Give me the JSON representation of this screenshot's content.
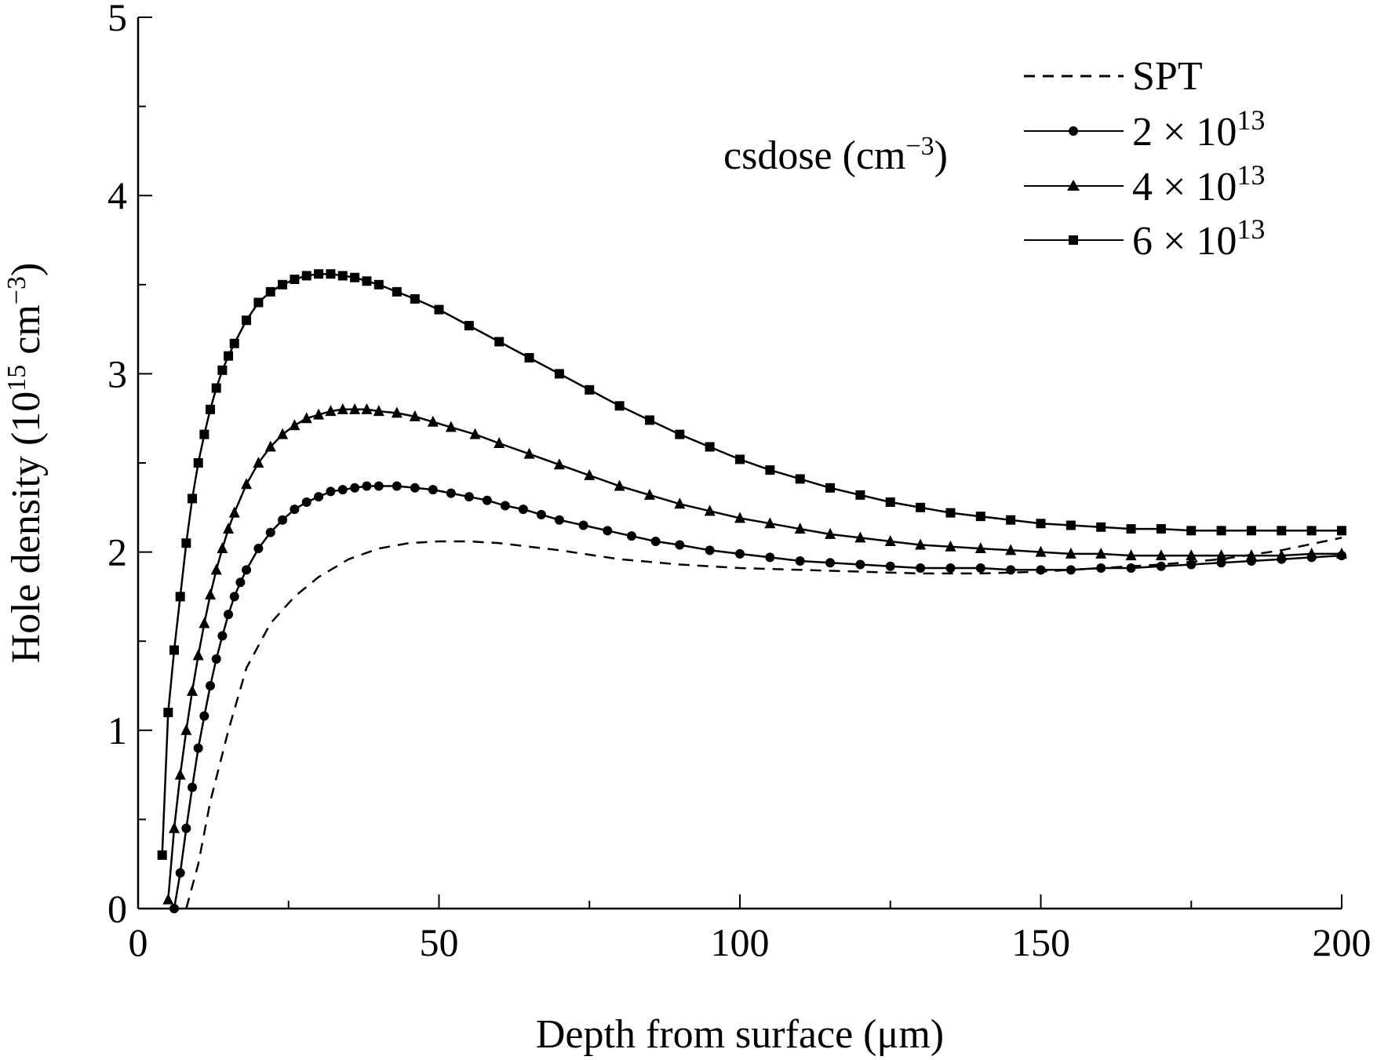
{
  "chart_data": {
    "type": "line",
    "xlabel": "Depth from surface (μm)",
    "ylabel": "Hole density (10^15 cm^-3)",
    "ylabel_parts": {
      "main": "Hole density (10",
      "sup1": "15",
      "mid": " cm",
      "sup2": "−3",
      "end": ")"
    },
    "xlim": [
      0,
      200
    ],
    "ylim": [
      0,
      5
    ],
    "xticks": [
      0,
      50,
      100,
      150,
      200
    ],
    "yticks": [
      0,
      1,
      2,
      3,
      4,
      5
    ],
    "grid": false,
    "legend_position": "top-right",
    "legend_title": {
      "main": "csdose (cm",
      "sup": "−3",
      "end": ")"
    },
    "series": [
      {
        "name": "SPT",
        "label": {
          "text": "SPT"
        },
        "style": "dashed",
        "marker": "none",
        "x": [
          8,
          10,
          12,
          15,
          18,
          22,
          26,
          30,
          35,
          40,
          45,
          50,
          55,
          60,
          70,
          80,
          90,
          100,
          110,
          120,
          130,
          140,
          150,
          160,
          170,
          180,
          190,
          200
        ],
        "y": [
          0,
          0.25,
          0.6,
          1.0,
          1.35,
          1.6,
          1.75,
          1.86,
          1.96,
          2.02,
          2.05,
          2.06,
          2.06,
          2.05,
          2.01,
          1.96,
          1.93,
          1.91,
          1.9,
          1.89,
          1.88,
          1.88,
          1.89,
          1.91,
          1.93,
          1.96,
          2.01,
          2.08
        ]
      },
      {
        "name": "2 × 10^13",
        "label": {
          "base": "2 × 10",
          "sup": "13"
        },
        "style": "solid",
        "marker": "circle",
        "x": [
          6,
          7,
          8,
          9,
          10,
          11,
          12,
          13,
          14,
          15,
          16,
          17,
          18,
          20,
          22,
          24,
          26,
          28,
          30,
          32,
          34,
          36,
          38,
          40,
          43,
          46,
          49,
          52,
          55,
          58,
          61,
          64,
          67,
          70,
          74,
          78,
          82,
          86,
          90,
          95,
          100,
          105,
          110,
          115,
          120,
          125,
          130,
          135,
          140,
          145,
          150,
          155,
          160,
          165,
          170,
          175,
          180,
          185,
          190,
          195,
          200
        ],
        "y": [
          0.0,
          0.2,
          0.45,
          0.68,
          0.9,
          1.08,
          1.25,
          1.4,
          1.53,
          1.65,
          1.75,
          1.83,
          1.9,
          2.02,
          2.11,
          2.18,
          2.24,
          2.28,
          2.31,
          2.34,
          2.35,
          2.36,
          2.37,
          2.37,
          2.37,
          2.36,
          2.35,
          2.33,
          2.31,
          2.29,
          2.26,
          2.24,
          2.21,
          2.18,
          2.15,
          2.12,
          2.09,
          2.06,
          2.04,
          2.01,
          1.99,
          1.97,
          1.95,
          1.94,
          1.93,
          1.92,
          1.91,
          1.91,
          1.91,
          1.9,
          1.9,
          1.9,
          1.91,
          1.91,
          1.92,
          1.93,
          1.94,
          1.95,
          1.96,
          1.97,
          1.98
        ]
      },
      {
        "name": "4 × 10^13",
        "label": {
          "base": "4 × 10",
          "sup": "13"
        },
        "style": "solid",
        "marker": "triangle",
        "x": [
          5,
          6,
          7,
          8,
          9,
          10,
          11,
          12,
          13,
          14,
          15,
          16,
          18,
          20,
          22,
          24,
          26,
          28,
          30,
          32,
          34,
          36,
          38,
          40,
          43,
          46,
          49,
          52,
          56,
          60,
          65,
          70,
          75,
          80,
          85,
          90,
          95,
          100,
          105,
          110,
          115,
          120,
          125,
          130,
          135,
          140,
          145,
          150,
          155,
          160,
          165,
          170,
          175,
          180,
          185,
          190,
          195,
          200
        ],
        "y": [
          0.05,
          0.45,
          0.75,
          1.0,
          1.22,
          1.42,
          1.6,
          1.76,
          1.9,
          2.02,
          2.13,
          2.22,
          2.38,
          2.5,
          2.59,
          2.66,
          2.71,
          2.75,
          2.77,
          2.79,
          2.8,
          2.8,
          2.8,
          2.79,
          2.78,
          2.76,
          2.73,
          2.7,
          2.66,
          2.61,
          2.55,
          2.49,
          2.43,
          2.37,
          2.32,
          2.27,
          2.23,
          2.19,
          2.16,
          2.13,
          2.1,
          2.08,
          2.06,
          2.04,
          2.03,
          2.02,
          2.01,
          2.0,
          1.99,
          1.99,
          1.98,
          1.98,
          1.98,
          1.98,
          1.98,
          1.98,
          1.99,
          1.99
        ]
      },
      {
        "name": "6 × 10^13",
        "label": {
          "base": "6 × 10",
          "sup": "13"
        },
        "style": "solid",
        "marker": "square",
        "x": [
          4,
          5,
          6,
          7,
          8,
          9,
          10,
          11,
          12,
          13,
          14,
          15,
          16,
          18,
          20,
          22,
          24,
          26,
          28,
          30,
          32,
          34,
          36,
          38,
          40,
          43,
          46,
          50,
          55,
          60,
          65,
          70,
          75,
          80,
          85,
          90,
          95,
          100,
          105,
          110,
          115,
          120,
          125,
          130,
          135,
          140,
          145,
          150,
          155,
          160,
          165,
          170,
          175,
          180,
          185,
          190,
          195,
          200
        ],
        "y": [
          0.3,
          1.1,
          1.45,
          1.75,
          2.05,
          2.3,
          2.5,
          2.66,
          2.8,
          2.92,
          3.02,
          3.1,
          3.17,
          3.3,
          3.4,
          3.46,
          3.5,
          3.53,
          3.55,
          3.56,
          3.56,
          3.55,
          3.54,
          3.52,
          3.5,
          3.46,
          3.42,
          3.36,
          3.27,
          3.18,
          3.09,
          3.0,
          2.91,
          2.82,
          2.74,
          2.66,
          2.59,
          2.52,
          2.46,
          2.41,
          2.36,
          2.32,
          2.28,
          2.25,
          2.22,
          2.2,
          2.18,
          2.16,
          2.15,
          2.14,
          2.13,
          2.13,
          2.12,
          2.12,
          2.12,
          2.12,
          2.12,
          2.12
        ]
      }
    ]
  }
}
